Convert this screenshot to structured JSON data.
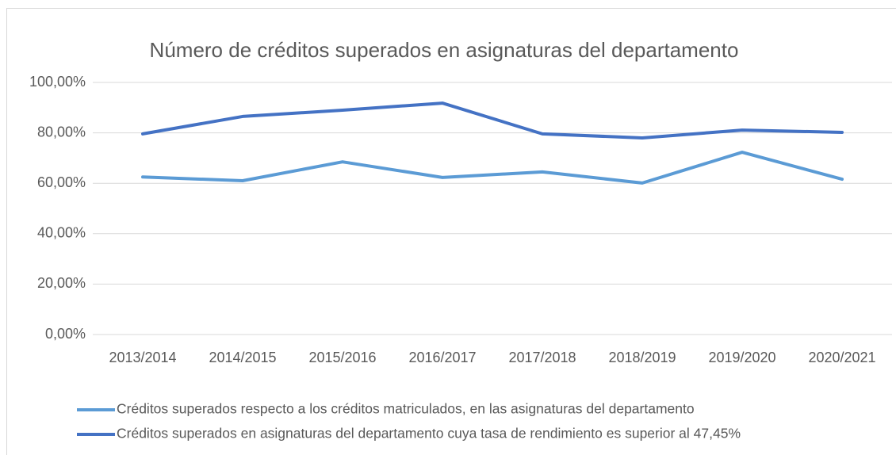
{
  "chart_data": {
    "type": "line",
    "title": "Número de créditos superados en asignaturas del departamento",
    "categories": [
      "2013/2014",
      "2014/2015",
      "2015/2016",
      "2016/2017",
      "2017/2018",
      "2018/2019",
      "2019/2020",
      "2020/2021"
    ],
    "series": [
      {
        "name": "Créditos superados respecto a los créditos matriculados, en las asignaturas del departamento",
        "color": "#5b9bd5",
        "values": [
          62.5,
          61,
          68.5,
          62.3,
          64.5,
          60.1,
          72.3,
          61.6
        ]
      },
      {
        "name": "Créditos superados en asignaturas del departamento cuya tasa de rendimiento es superior al 47,45%",
        "color": "#4472c4",
        "values": [
          79.6,
          86.5,
          89,
          91.8,
          79.6,
          78,
          81.1,
          80.2
        ]
      }
    ],
    "ylim": [
      0,
      100
    ],
    "yticks": [
      {
        "value": 0,
        "label": "0,00%"
      },
      {
        "value": 20,
        "label": "20,00%"
      },
      {
        "value": 40,
        "label": "40,00%"
      },
      {
        "value": 60,
        "label": "60,00%"
      },
      {
        "value": 80,
        "label": "80,00%"
      },
      {
        "value": 100,
        "label": "100,00%"
      }
    ],
    "grid": true,
    "legend": "bottom"
  }
}
